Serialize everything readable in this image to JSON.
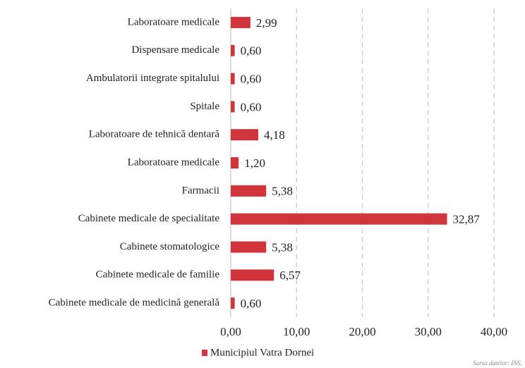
{
  "chart_data": {
    "type": "barh",
    "categories": [
      "Laboratoare medicale",
      "Dispensare medicale",
      "Ambulatorii integrate spitalului",
      "Spitale",
      "Laboratoare de tehnică dentară",
      "Laboratoare medicale",
      "Farmacii",
      "Cabinete medicale de specialitate",
      "Cabinete stomatologice",
      "Cabinete medicale de familie",
      "Cabinete medicale de medicină generală"
    ],
    "series": [
      {
        "name": "Municipiul Vatra Dornei",
        "color": "#d1343a",
        "values": [
          2.99,
          0.6,
          0.6,
          0.6,
          4.18,
          1.2,
          5.38,
          32.87,
          5.38,
          6.57,
          0.6
        ],
        "value_labels": [
          "2,99",
          "0,60",
          "0,60",
          "0,60",
          "4,18",
          "1,20",
          "5,38",
          "32,87",
          "5,38",
          "6,57",
          "0,60"
        ]
      }
    ],
    "xlim": [
      0,
      40
    ],
    "xticks": [
      {
        "value": 0,
        "label": "0,00"
      },
      {
        "value": 10,
        "label": "10,00"
      },
      {
        "value": 20,
        "label": "20,00"
      },
      {
        "value": 30,
        "label": "30,00"
      },
      {
        "value": 40,
        "label": "40,00"
      }
    ],
    "grid": true,
    "legend": "bottom",
    "source": "Sursa datelor: INS."
  }
}
